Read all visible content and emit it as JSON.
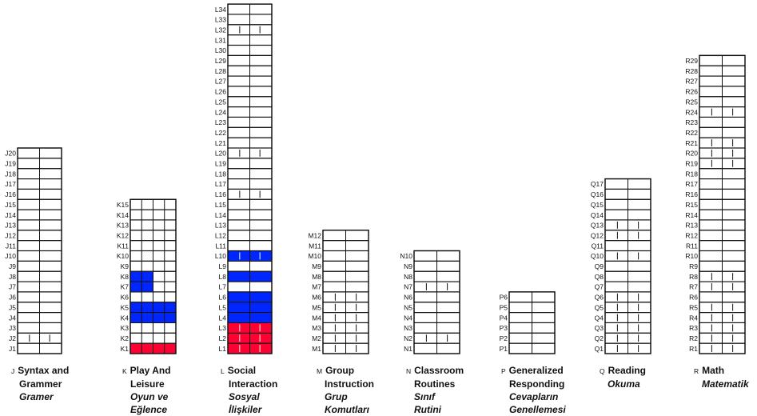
{
  "chart_data": {
    "type": "table",
    "legend": {
      "filled": "#0026ff",
      "completed": "#ff0033",
      "grid": "#111111"
    },
    "domains": [
      {
        "code": "J",
        "title": [
          "Syntax and",
          "Grammer"
        ],
        "subtitle": [
          "Gramer"
        ],
        "columns": 2,
        "levels": 20,
        "divided_rows": [
          2
        ],
        "blue_rows": [],
        "red_rows": []
      },
      {
        "code": "K",
        "title": [
          "Play And",
          "Leisure"
        ],
        "subtitle": [
          "Oyun ve",
          "Eğlence"
        ],
        "columns": 4,
        "levels": 15,
        "divided_rows": [],
        "blue_rows": [
          4,
          5
        ],
        "blue_rows_partial": {
          "7": 2,
          "8": 2
        },
        "red_rows": [
          1
        ]
      },
      {
        "code": "L",
        "title": [
          "Social",
          "Interaction"
        ],
        "subtitle": [
          "Sosyal",
          "İlişkiler"
        ],
        "columns": 2,
        "levels": 34,
        "divided_rows": [
          1,
          2,
          3,
          10,
          16,
          20,
          32
        ],
        "blue_rows": [
          4,
          5,
          6,
          8,
          10
        ],
        "red_rows": [
          1,
          2,
          3
        ]
      },
      {
        "code": "M",
        "title": [
          "Group",
          "Instruction"
        ],
        "subtitle": [
          "Grup",
          "Komutları"
        ],
        "columns": 2,
        "levels": 12,
        "divided_rows": [
          1,
          2,
          3,
          4,
          5,
          6
        ],
        "blue_rows": [],
        "red_rows": []
      },
      {
        "code": "N",
        "title": [
          "Classroom",
          "Routines"
        ],
        "subtitle": [
          "Sınıf",
          "Rutini"
        ],
        "columns": 2,
        "levels": 10,
        "divided_rows": [
          2,
          7
        ],
        "blue_rows": [],
        "red_rows": []
      },
      {
        "code": "P",
        "title": [
          "Generalized",
          "Responding"
        ],
        "subtitle": [
          "Cevapların",
          "Genellemesi"
        ],
        "columns": 2,
        "levels": 6,
        "divided_rows": [],
        "blue_rows": [],
        "red_rows": []
      },
      {
        "code": "Q",
        "title": [
          "Reading"
        ],
        "subtitle": [
          "Okuma"
        ],
        "columns": 2,
        "levels": 17,
        "divided_rows": [
          1,
          2,
          3,
          4,
          5,
          6,
          10,
          12,
          13
        ],
        "blue_rows": [],
        "red_rows": []
      },
      {
        "code": "R",
        "title": [
          "Math"
        ],
        "subtitle": [
          "Matematik"
        ],
        "columns": 2,
        "levels": 29,
        "divided_rows": [
          1,
          2,
          3,
          4,
          5,
          7,
          8,
          19,
          20,
          21,
          24
        ],
        "blue_rows": [],
        "red_rows": []
      }
    ]
  }
}
